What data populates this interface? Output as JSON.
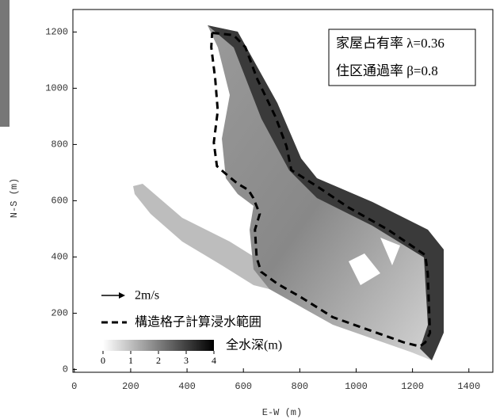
{
  "chart_data": {
    "type": "line",
    "xlabel": "E-W (m)",
    "ylabel": "N-S (m)",
    "xlim": [
      -5,
      1485
    ],
    "ylim": [
      -10,
      1280
    ],
    "xticks": [
      0,
      200,
      400,
      600,
      800,
      1000,
      1200,
      1400
    ],
    "yticks": [
      0,
      200,
      400,
      600,
      800,
      1000,
      1200
    ],
    "annotations": [
      "家屋占有率 λ=0.36",
      "住区通過率 β=0.8"
    ],
    "vector_legend": "2m/s",
    "colorbar": {
      "label": "全水深(m)",
      "lim": [
        0,
        4
      ],
      "ticks": [
        0,
        1,
        2,
        3,
        4
      ]
    },
    "series": [
      {
        "name": "構造格子計算浸水範囲",
        "color": "#000000",
        "dash": true,
        "x": [
          489,
          565,
          607,
          649,
          714,
          753,
          770,
          860,
          973,
          1113,
          1245,
          1254,
          1262,
          1245,
          1226,
          1170,
          1057,
          917,
          804,
          720,
          663,
          647,
          641,
          658,
          635,
          618,
          579,
          545,
          506,
          495,
          509,
          500,
          486,
          489
        ],
        "y": [
          1197,
          1189,
          1146,
          1033,
          898,
          793,
          709,
          652,
          576,
          497,
          407,
          342,
          130,
          96,
          82,
          96,
          136,
          186,
          257,
          305,
          347,
          398,
          497,
          553,
          610,
          638,
          661,
          689,
          723,
          807,
          920,
          1033,
          1146,
          1197
        ]
      }
    ]
  }
}
